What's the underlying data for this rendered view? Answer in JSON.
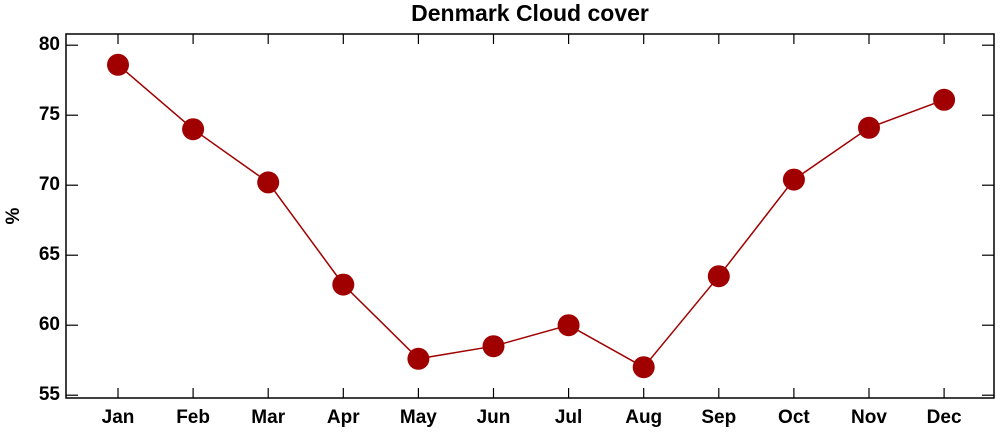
{
  "chart_data": {
    "type": "line",
    "title": "Denmark Cloud cover",
    "y_label": "%",
    "categories": [
      "Jan",
      "Feb",
      "Mar",
      "Apr",
      "May",
      "Jun",
      "Jul",
      "Aug",
      "Sep",
      "Oct",
      "Nov",
      "Dec"
    ],
    "values": [
      78.6,
      74.0,
      70.2,
      62.9,
      57.6,
      58.5,
      60.0,
      57.0,
      63.5,
      70.4,
      74.1,
      76.1
    ],
    "color": "#a00000",
    "ylim": [
      54.8,
      80.8
    ],
    "yticks": [
      55,
      60,
      65,
      70,
      75,
      80
    ]
  }
}
